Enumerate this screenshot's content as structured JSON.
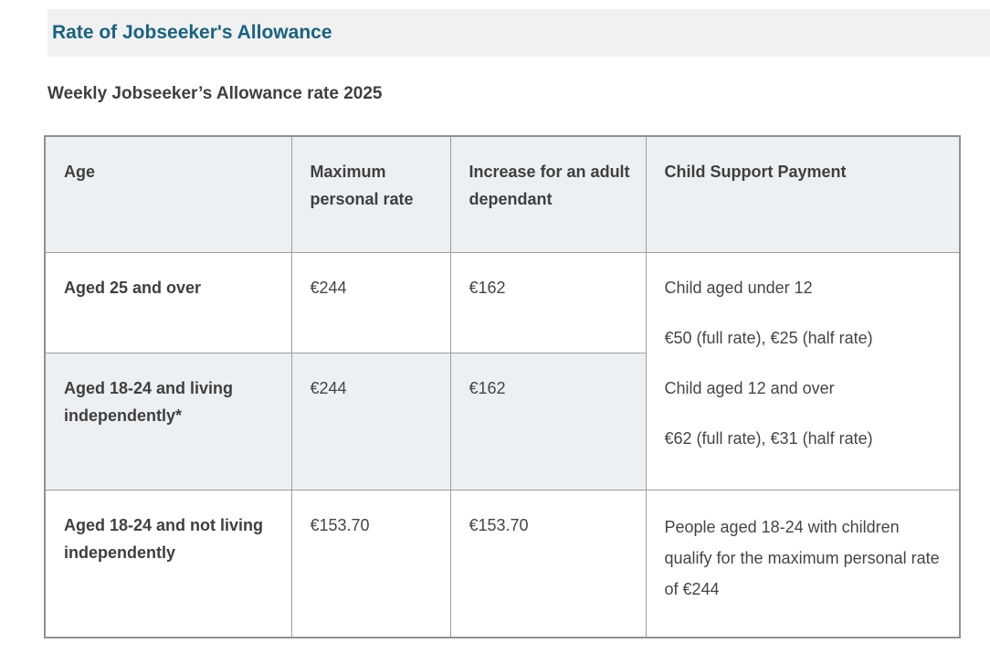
{
  "page": {
    "title": "Rate of Jobseeker's Allowance",
    "subtitle": "Weekly Jobseeker’s Allowance rate 2025"
  },
  "colors": {
    "heading_teal": "#19637f",
    "heading_band_bg": "#f1f1f1",
    "table_header_bg": "#ecf0f3",
    "row_highlight_bg": "#ecf0f3",
    "table_border": "#9e9e9e",
    "body_text": "#454545"
  },
  "table": {
    "headers": {
      "age": "Age",
      "max_personal_rate": "Maximum personal rate",
      "adult_dependant": "Increase for an adult dependant",
      "child_support": "Child Support Payment"
    },
    "rows": [
      {
        "age": "Aged 25 and over",
        "max_personal_rate": "€244",
        "adult_dependant": "€162"
      },
      {
        "age": "Aged 18-24 and living independently*",
        "max_personal_rate": "€244",
        "adult_dependant": "€162"
      },
      {
        "age": "Aged 18-24 and not living independently",
        "max_personal_rate": "€153.70",
        "adult_dependant": "€153.70",
        "child_support": "People aged 18-24 with children qualify for the maximum personal rate of €244"
      }
    ],
    "child_support_merged": {
      "line1": "Child aged under 12",
      "line2": "€50 (full rate), €25 (half rate)",
      "line3": "Child aged 12 and over",
      "line4": "€62 (full rate), €31 (half rate)"
    }
  }
}
